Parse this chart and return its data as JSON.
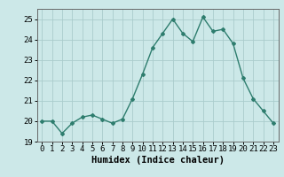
{
  "x": [
    0,
    1,
    2,
    3,
    4,
    5,
    6,
    7,
    8,
    9,
    10,
    11,
    12,
    13,
    14,
    15,
    16,
    17,
    18,
    19,
    20,
    21,
    22,
    23
  ],
  "y": [
    20.0,
    20.0,
    19.4,
    19.9,
    20.2,
    20.3,
    20.1,
    19.9,
    20.1,
    21.1,
    22.3,
    23.6,
    24.3,
    25.0,
    24.3,
    23.9,
    25.1,
    24.4,
    24.5,
    23.8,
    22.1,
    21.1,
    20.5,
    19.9
  ],
  "line_color": "#2e7d6e",
  "marker": "D",
  "marker_size": 2.0,
  "bg_color": "#cce8e8",
  "grid_color": "#aacccc",
  "xlabel": "Humidex (Indice chaleur)",
  "ylim": [
    19,
    25.5
  ],
  "xlim": [
    -0.5,
    23.5
  ],
  "yticks": [
    19,
    20,
    21,
    22,
    23,
    24,
    25
  ],
  "xticks": [
    0,
    1,
    2,
    3,
    4,
    5,
    6,
    7,
    8,
    9,
    10,
    11,
    12,
    13,
    14,
    15,
    16,
    17,
    18,
    19,
    20,
    21,
    22,
    23
  ],
  "xlabel_fontsize": 7.5,
  "tick_fontsize": 6.5,
  "line_width": 1.0
}
